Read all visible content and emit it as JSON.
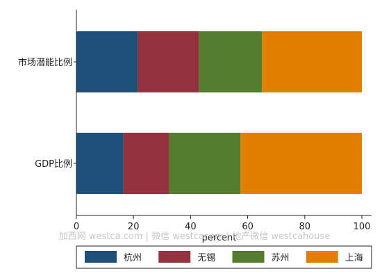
{
  "chart_data": {
    "type": "bar",
    "orientation": "horizontal",
    "stacked": true,
    "categories": [
      "市场潜能比例",
      "GDP比例"
    ],
    "series": [
      {
        "name": "杭州",
        "color": "#1f4e79",
        "values": [
          21.5,
          16.5
        ]
      },
      {
        "name": "无锡",
        "color": "#943340",
        "values": [
          21.5,
          16.0
        ]
      },
      {
        "name": "苏州",
        "color": "#557d2f",
        "values": [
          22.0,
          25.0
        ]
      },
      {
        "name": "上海",
        "color": "#e07f00",
        "values": [
          35.0,
          42.5
        ]
      }
    ],
    "xlabel": "percent",
    "xlim": [
      0,
      100
    ],
    "xticks": [
      "0",
      "20",
      "40",
      "60",
      "80",
      "100"
    ],
    "grid": false,
    "legend_position": "bottom"
  },
  "watermark": "加西网 westca.com | 微信 westcacom | 地产微信 westcahouse"
}
